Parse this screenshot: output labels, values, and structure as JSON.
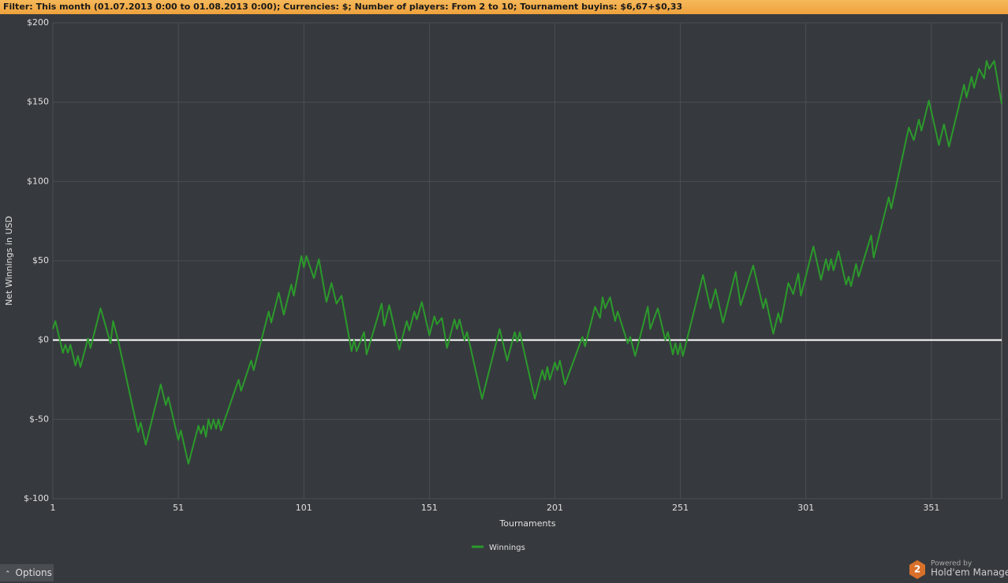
{
  "filter": {
    "label": "Filter:",
    "text": "This month (01.07.2013 0:00 to 01.08.2013 0:00); Currencies: $; Number of players: From 2 to 10; Tournament buyins: $6,67+$0,33"
  },
  "chart_data": {
    "type": "line",
    "xlabel": "Tournaments",
    "ylabel": "Net Winnings in USD",
    "x": [
      1,
      2,
      5,
      6,
      7,
      8,
      10,
      11,
      12,
      15,
      16,
      20,
      24,
      25,
      27,
      35,
      36,
      38,
      44,
      46,
      47,
      51,
      52,
      55,
      59,
      60,
      61,
      62,
      63,
      64,
      65,
      66,
      67,
      68,
      75,
      76,
      80,
      81,
      87,
      88,
      91,
      93,
      96,
      97,
      100,
      101,
      102,
      105,
      107,
      110,
      112,
      114,
      116,
      120,
      121,
      122,
      125,
      126,
      132,
      133,
      135,
      139,
      142,
      143,
      145,
      146,
      148,
      151,
      153,
      154,
      156,
      158,
      161,
      162,
      163,
      165,
      166,
      167,
      172,
      179,
      182,
      185,
      186,
      187,
      193,
      196,
      197,
      198,
      199,
      201,
      202,
      203,
      205,
      212,
      213,
      217,
      219,
      220,
      221,
      223,
      225,
      226,
      230,
      231,
      233,
      238,
      239,
      242,
      245,
      246,
      248,
      249,
      250,
      251,
      252,
      260,
      263,
      265,
      268,
      273,
      275,
      280,
      284,
      285,
      288,
      290,
      291,
      294,
      296,
      298,
      299,
      304,
      307,
      309,
      310,
      311,
      312,
      314,
      317,
      318,
      319,
      321,
      322,
      327,
      328,
      334,
      335,
      342,
      344,
      346,
      347,
      350,
      354,
      356,
      358,
      364,
      365,
      367,
      368,
      370,
      372,
      373,
      374,
      376,
      379
    ],
    "series": [
      {
        "name": "Winnings",
        "color": "#2b9a2b",
        "values": [
          7,
          12,
          -8,
          -3,
          -8,
          -3,
          -16,
          -10,
          -17,
          1,
          -5,
          20,
          -2,
          12,
          0,
          -58,
          -52,
          -66,
          -28,
          -41,
          -36,
          -63,
          -57,
          -78,
          -54,
          -59,
          -54,
          -61,
          -50,
          -56,
          -50,
          -56,
          -50,
          -57,
          -25,
          -32,
          -13,
          -19,
          18,
          11,
          30,
          16,
          35,
          28,
          53,
          46,
          53,
          39,
          51,
          24,
          36,
          23,
          28,
          -7,
          0,
          -7,
          5,
          -9,
          23,
          9,
          22,
          -6,
          12,
          6,
          18,
          13,
          24,
          3,
          15,
          10,
          14,
          -5,
          13,
          7,
          13,
          0,
          5,
          -2,
          -37,
          7,
          -13,
          5,
          -1,
          5,
          -37,
          -19,
          -25,
          -17,
          -25,
          -14,
          -19,
          -13,
          -28,
          2,
          -4,
          21,
          14,
          27,
          20,
          27,
          12,
          18,
          -2,
          2,
          -10,
          21,
          7,
          20,
          0,
          5,
          -9,
          -2,
          -9,
          -2,
          -10,
          41,
          20,
          32,
          11,
          43,
          22,
          47,
          20,
          26,
          4,
          17,
          11,
          36,
          29,
          42,
          28,
          59,
          38,
          51,
          44,
          51,
          44,
          56,
          35,
          40,
          34,
          48,
          40,
          66,
          52,
          90,
          83,
          134,
          126,
          139,
          132,
          151,
          123,
          136,
          122,
          161,
          153,
          166,
          159,
          171,
          165,
          176,
          171,
          176,
          149
        ]
      }
    ],
    "xlim": [
      1,
      379
    ],
    "ylim": [
      -100,
      200
    ],
    "xticks": [
      1,
      51,
      101,
      151,
      201,
      251,
      301,
      351
    ],
    "yticks": [
      {
        "value": -100,
        "label": "$-100"
      },
      {
        "value": -50,
        "label": "$-50"
      },
      {
        "value": 0,
        "label": "$0"
      },
      {
        "value": 50,
        "label": "$50"
      },
      {
        "value": 100,
        "label": "$100"
      },
      {
        "value": 150,
        "label": "$150"
      },
      {
        "value": 200,
        "label": "$200"
      }
    ],
    "grid": true,
    "legend": "bottom"
  },
  "footer": {
    "options": "Options",
    "logo": "2",
    "powered_by": "Powered by",
    "brand": "Hold'em Manager"
  }
}
